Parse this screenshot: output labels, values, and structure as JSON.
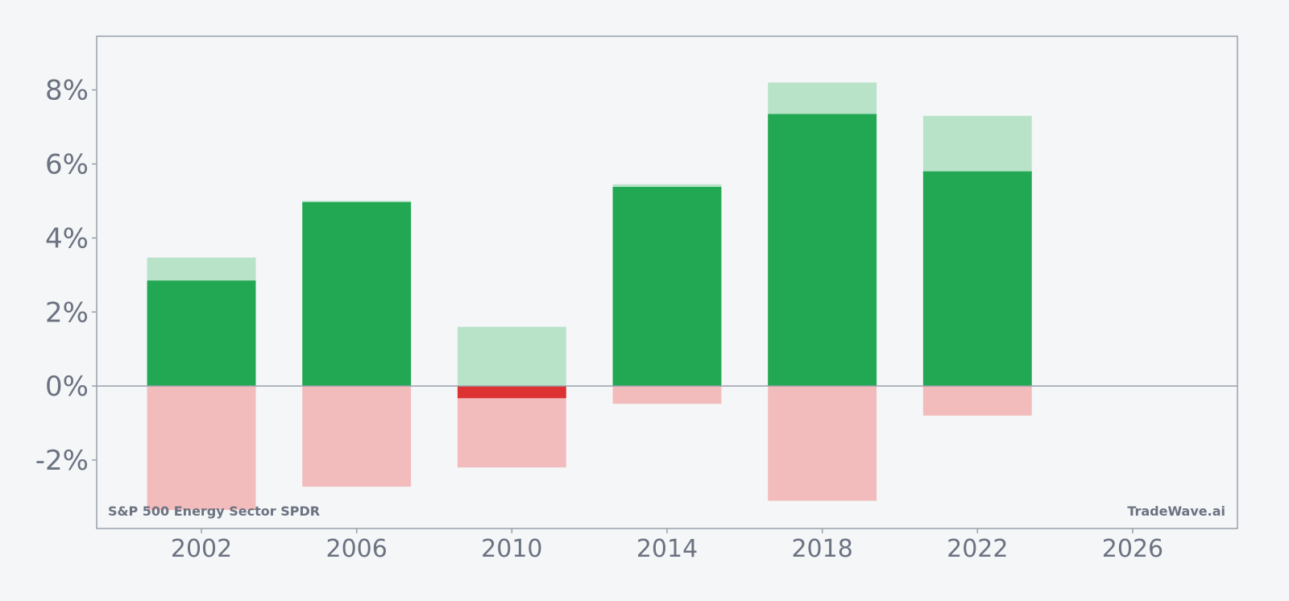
{
  "chart_data": {
    "type": "bar",
    "x": [
      2002,
      2006,
      2010,
      2014,
      2018,
      2022
    ],
    "series": [
      {
        "values": [
          2.85,
          4.97,
          -0.33,
          5.38,
          7.35,
          5.8
        ]
      }
    ],
    "positive_range": [
      3.47,
      5.0,
      1.6,
      5.45,
      8.2,
      7.3
    ],
    "negative_range": [
      -3.35,
      -2.72,
      -2.2,
      -0.48,
      -3.1,
      -0.8
    ],
    "xlim": [
      1999.3,
      2028.7
    ],
    "ylim": [
      -3.85,
      9.45
    ],
    "x_ticks": [
      "2002",
      "2006",
      "2010",
      "2014",
      "2018",
      "2022",
      "2026"
    ],
    "y_ticks": [
      "-2%",
      "0%",
      "2%",
      "4%",
      "6%",
      "8%"
    ],
    "bottom_left_label": "S&P 500 Energy Sector SPDR",
    "bottom_right_label": "TradeWave.ai",
    "colors": {
      "positive": "#22a852",
      "positive_light": "#b9e3c9",
      "negative": "#dc3232",
      "negative_light": "#f3bcbc",
      "axis": "#9aa0aa",
      "text": "#6b7280",
      "background": "#f4f6f8"
    },
    "grid": false
  }
}
